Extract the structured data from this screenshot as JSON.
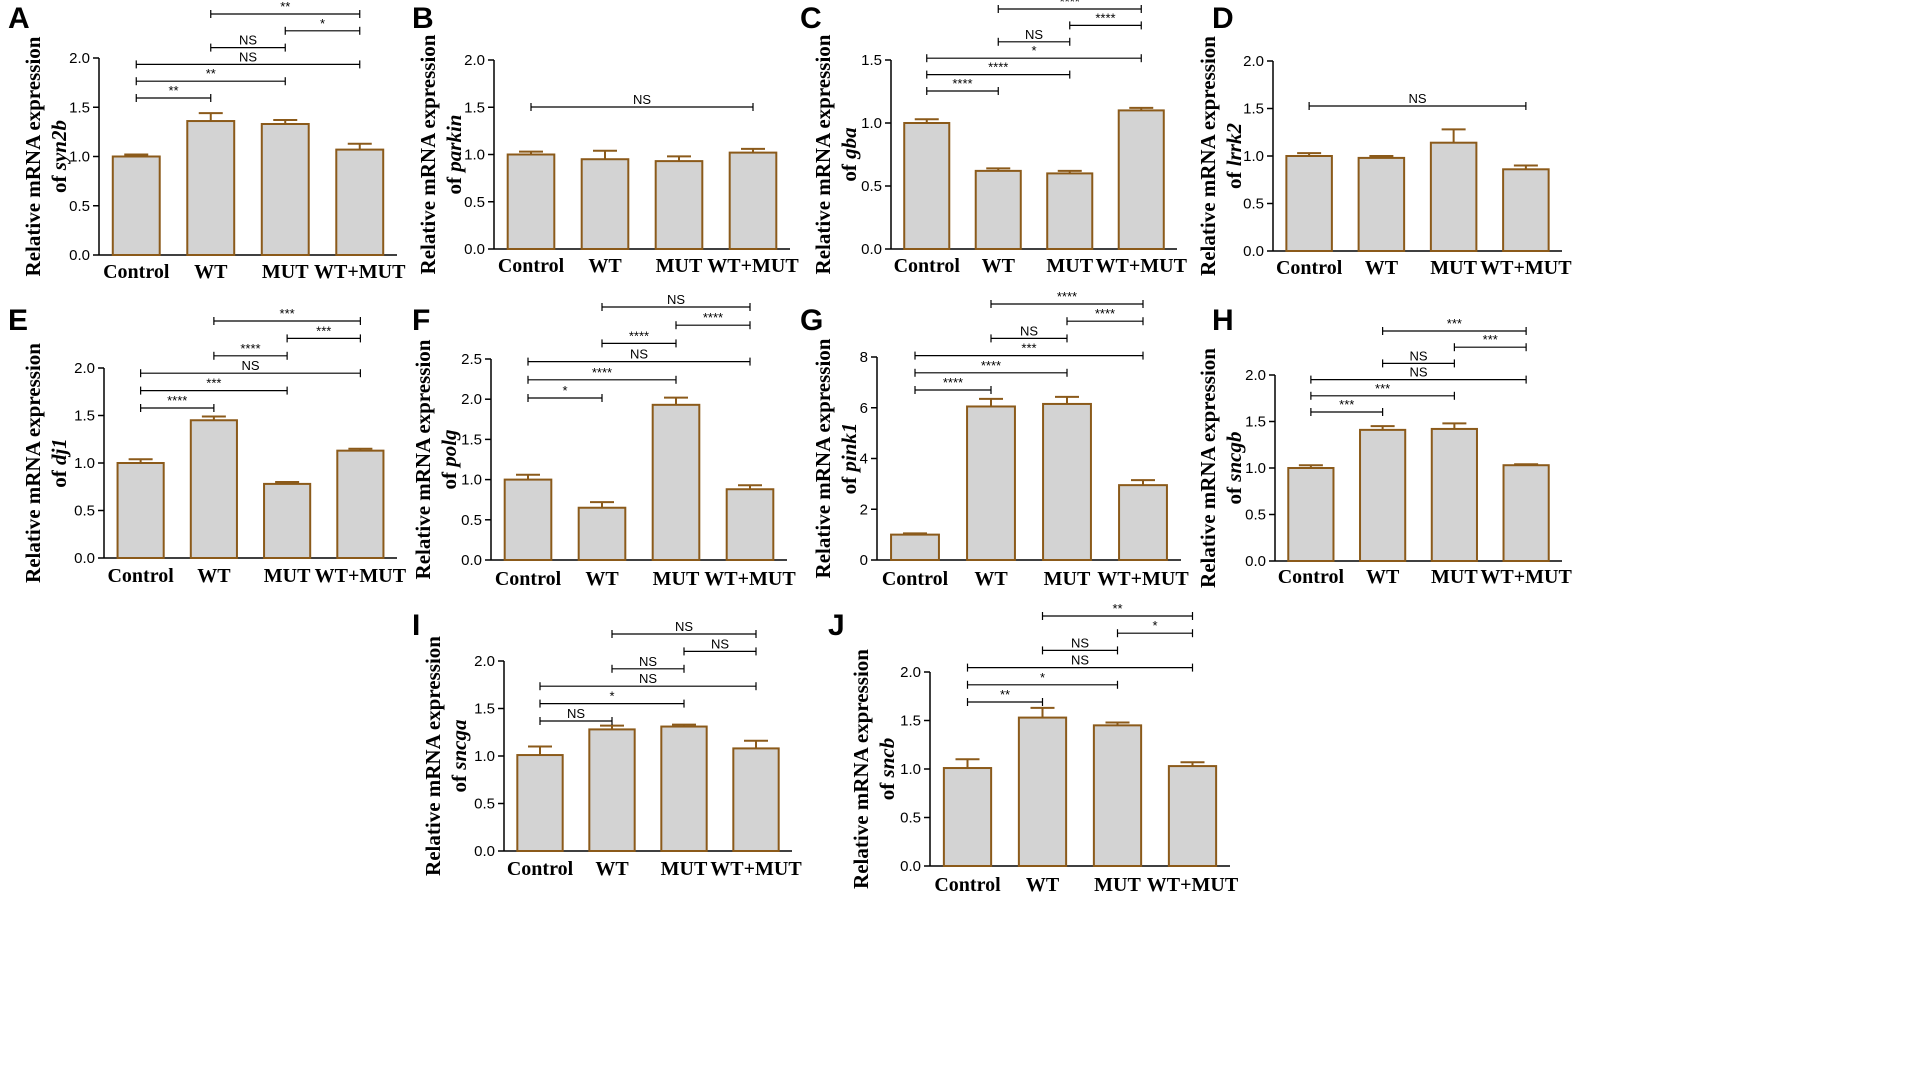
{
  "figure": {
    "description_free": true,
    "bar_fill": "#d3d3d3",
    "bar_stroke": "#8b5a1a",
    "axis_color": "#000000"
  },
  "chart_data": [
    {
      "id": "A",
      "letter": "A",
      "type": "bar",
      "ylabel_line1": "Relative mRNA expression",
      "ylabel_prefix": "of ",
      "gene": "syn2b",
      "categories": [
        "Control",
        "WT",
        "MUT",
        "WT+MUT"
      ],
      "values": [
        1.0,
        1.36,
        1.33,
        1.07
      ],
      "errors": [
        0.02,
        0.08,
        0.04,
        0.06
      ],
      "ylim": [
        0,
        2.0
      ],
      "yticks": [
        0.0,
        0.5,
        1.0,
        1.5,
        2.0
      ],
      "tick_decimals": 1,
      "comparisons": [
        {
          "from": 0,
          "to": 1,
          "label": "**"
        },
        {
          "from": 0,
          "to": 2,
          "label": "**"
        },
        {
          "from": 0,
          "to": 3,
          "label": "NS"
        },
        {
          "from": 1,
          "to": 2,
          "label": "NS"
        },
        {
          "from": 2,
          "to": 3,
          "label": "*"
        },
        {
          "from": 1,
          "to": 3,
          "label": "**"
        }
      ]
    },
    {
      "id": "B",
      "letter": "B",
      "type": "bar",
      "ylabel_line1": "Relative mRNA expression",
      "ylabel_prefix": "of ",
      "gene": "parkin",
      "categories": [
        "Control",
        "WT",
        "MUT",
        "WT+MUT"
      ],
      "values": [
        1.0,
        0.95,
        0.93,
        1.02
      ],
      "errors": [
        0.03,
        0.09,
        0.05,
        0.04
      ],
      "ylim": [
        0,
        2.0
      ],
      "yticks": [
        0.0,
        0.5,
        1.0,
        1.5,
        2.0
      ],
      "tick_decimals": 1,
      "comparisons": [
        {
          "from": 0,
          "to": 3,
          "label": "NS"
        }
      ]
    },
    {
      "id": "C",
      "letter": "C",
      "type": "bar",
      "ylabel_line1": "Relative mRNA expression",
      "ylabel_prefix": "of ",
      "gene": "gba",
      "categories": [
        "Control",
        "WT",
        "MUT",
        "WT+MUT"
      ],
      "values": [
        1.0,
        0.62,
        0.6,
        1.1
      ],
      "errors": [
        0.03,
        0.02,
        0.02,
        0.02
      ],
      "ylim": [
        0,
        1.5
      ],
      "yticks": [
        0.0,
        0.5,
        1.0,
        1.5
      ],
      "tick_decimals": 1,
      "comparisons": [
        {
          "from": 0,
          "to": 1,
          "label": "****"
        },
        {
          "from": 0,
          "to": 2,
          "label": "****"
        },
        {
          "from": 0,
          "to": 3,
          "label": "*"
        },
        {
          "from": 1,
          "to": 2,
          "label": "NS"
        },
        {
          "from": 2,
          "to": 3,
          "label": "****"
        },
        {
          "from": 1,
          "to": 3,
          "label": "****"
        }
      ]
    },
    {
      "id": "D",
      "letter": "D",
      "type": "bar",
      "ylabel_line1": "Relative mRNA expression",
      "ylabel_prefix": "of ",
      "gene": "lrrk2",
      "categories": [
        "Control",
        "WT",
        "MUT",
        "WT+MUT"
      ],
      "values": [
        1.0,
        0.98,
        1.14,
        0.86
      ],
      "errors": [
        0.03,
        0.02,
        0.14,
        0.04
      ],
      "ylim": [
        0,
        2.0
      ],
      "yticks": [
        0.0,
        0.5,
        1.0,
        1.5,
        2.0
      ],
      "tick_decimals": 1,
      "comparisons": [
        {
          "from": 0,
          "to": 3,
          "label": "NS"
        }
      ]
    },
    {
      "id": "E",
      "letter": "E",
      "type": "bar",
      "ylabel_line1": "Relative mRNA expression",
      "ylabel_prefix": "of ",
      "gene": "dj1",
      "categories": [
        "Control",
        "WT",
        "MUT",
        "WT+MUT"
      ],
      "values": [
        1.0,
        1.45,
        0.78,
        1.13
      ],
      "errors": [
        0.04,
        0.04,
        0.02,
        0.02
      ],
      "ylim": [
        0,
        2.0
      ],
      "yticks": [
        0.0,
        0.5,
        1.0,
        1.5,
        2.0
      ],
      "tick_decimals": 1,
      "comparisons": [
        {
          "from": 0,
          "to": 1,
          "label": "****"
        },
        {
          "from": 0,
          "to": 2,
          "label": "***"
        },
        {
          "from": 0,
          "to": 3,
          "label": "NS"
        },
        {
          "from": 1,
          "to": 2,
          "label": "****"
        },
        {
          "from": 2,
          "to": 3,
          "label": "***"
        },
        {
          "from": 1,
          "to": 3,
          "label": "***"
        }
      ]
    },
    {
      "id": "F",
      "letter": "F",
      "type": "bar",
      "ylabel_line1": "Relative mRNA expression",
      "ylabel_prefix": "of ",
      "gene": "polg",
      "categories": [
        "Control",
        "WT",
        "MUT",
        "WT+MUT"
      ],
      "values": [
        1.0,
        0.65,
        1.93,
        0.88
      ],
      "errors": [
        0.06,
        0.07,
        0.09,
        0.05
      ],
      "ylim": [
        0,
        2.5
      ],
      "yticks": [
        0.0,
        0.5,
        1.0,
        1.5,
        2.0,
        2.5
      ],
      "tick_decimals": 1,
      "comparisons": [
        {
          "from": 0,
          "to": 1,
          "label": "*"
        },
        {
          "from": 0,
          "to": 2,
          "label": "****"
        },
        {
          "from": 0,
          "to": 3,
          "label": "NS"
        },
        {
          "from": 1,
          "to": 2,
          "label": "****"
        },
        {
          "from": 2,
          "to": 3,
          "label": "****"
        },
        {
          "from": 1,
          "to": 3,
          "label": "NS"
        }
      ]
    },
    {
      "id": "G",
      "letter": "G",
      "type": "bar",
      "ylabel_line1": "Relative mRNA expression",
      "ylabel_prefix": "of ",
      "gene": "pink1",
      "categories": [
        "Control",
        "WT",
        "MUT",
        "WT+MUT"
      ],
      "values": [
        1.0,
        6.05,
        6.15,
        2.95
      ],
      "errors": [
        0.05,
        0.3,
        0.28,
        0.2
      ],
      "ylim": [
        0,
        8
      ],
      "yticks": [
        0,
        2,
        4,
        6,
        8
      ],
      "tick_decimals": 0,
      "comparisons": [
        {
          "from": 0,
          "to": 1,
          "label": "****"
        },
        {
          "from": 0,
          "to": 2,
          "label": "****"
        },
        {
          "from": 0,
          "to": 3,
          "label": "***"
        },
        {
          "from": 1,
          "to": 2,
          "label": "NS"
        },
        {
          "from": 2,
          "to": 3,
          "label": "****"
        },
        {
          "from": 1,
          "to": 3,
          "label": "****"
        }
      ]
    },
    {
      "id": "H",
      "letter": "H",
      "type": "bar",
      "ylabel_line1": "Relative mRNA expression",
      "ylabel_prefix": "of ",
      "gene": "sncgb",
      "categories": [
        "Control",
        "WT",
        "MUT",
        "WT+MUT"
      ],
      "values": [
        1.0,
        1.41,
        1.42,
        1.03
      ],
      "errors": [
        0.03,
        0.04,
        0.06,
        0.01
      ],
      "ylim": [
        0,
        2.0
      ],
      "yticks": [
        0.0,
        0.5,
        1.0,
        1.5,
        2.0
      ],
      "tick_decimals": 1,
      "comparisons": [
        {
          "from": 0,
          "to": 1,
          "label": "***"
        },
        {
          "from": 0,
          "to": 2,
          "label": "***"
        },
        {
          "from": 0,
          "to": 3,
          "label": "NS"
        },
        {
          "from": 1,
          "to": 2,
          "label": "NS"
        },
        {
          "from": 2,
          "to": 3,
          "label": "***"
        },
        {
          "from": 1,
          "to": 3,
          "label": "***"
        }
      ]
    },
    {
      "id": "I",
      "letter": "I",
      "type": "bar",
      "ylabel_line1": "Relative mRNA expression",
      "ylabel_prefix": "of ",
      "gene": "sncga",
      "categories": [
        "Control",
        "WT",
        "MUT",
        "WT+MUT"
      ],
      "values": [
        1.01,
        1.28,
        1.31,
        1.08
      ],
      "errors": [
        0.09,
        0.04,
        0.02,
        0.08
      ],
      "ylim": [
        0,
        2.0
      ],
      "yticks": [
        0.0,
        0.5,
        1.0,
        1.5,
        2.0
      ],
      "tick_decimals": 1,
      "comparisons": [
        {
          "from": 0,
          "to": 1,
          "label": "NS"
        },
        {
          "from": 0,
          "to": 2,
          "label": "*"
        },
        {
          "from": 0,
          "to": 3,
          "label": "NS"
        },
        {
          "from": 1,
          "to": 2,
          "label": "NS"
        },
        {
          "from": 2,
          "to": 3,
          "label": "NS"
        },
        {
          "from": 1,
          "to": 3,
          "label": "NS"
        }
      ]
    },
    {
      "id": "J",
      "letter": "J",
      "type": "bar",
      "ylabel_line1": "Relative mRNA expression",
      "ylabel_prefix": "of ",
      "gene": "sncb",
      "categories": [
        "Control",
        "WT",
        "MUT",
        "WT+MUT"
      ],
      "values": [
        1.01,
        1.53,
        1.45,
        1.03
      ],
      "errors": [
        0.09,
        0.1,
        0.03,
        0.04
      ],
      "ylim": [
        0,
        2.0
      ],
      "yticks": [
        0.0,
        0.5,
        1.0,
        1.5,
        2.0
      ],
      "tick_decimals": 1,
      "comparisons": [
        {
          "from": 0,
          "to": 1,
          "label": "**"
        },
        {
          "from": 0,
          "to": 2,
          "label": "*"
        },
        {
          "from": 0,
          "to": 3,
          "label": "NS"
        },
        {
          "from": 1,
          "to": 2,
          "label": "NS"
        },
        {
          "from": 2,
          "to": 3,
          "label": "*"
        },
        {
          "from": 1,
          "to": 3,
          "label": "**"
        }
      ]
    }
  ]
}
